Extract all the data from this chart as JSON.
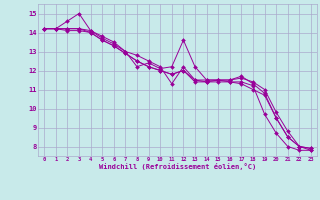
{
  "background_color": "#c8eaea",
  "grid_color": "#aaaacc",
  "line_color": "#990099",
  "marker_color": "#990099",
  "xlabel": "Windchill (Refroidissement éolien,°C)",
  "xlabel_color": "#990099",
  "tick_color": "#990099",
  "xlim": [
    -0.5,
    23.5
  ],
  "ylim": [
    7.5,
    15.5
  ],
  "xticks": [
    0,
    1,
    2,
    3,
    4,
    5,
    6,
    7,
    8,
    9,
    10,
    11,
    12,
    13,
    14,
    15,
    16,
    17,
    18,
    19,
    20,
    21,
    22,
    23
  ],
  "yticks": [
    8,
    9,
    10,
    11,
    12,
    13,
    14,
    15
  ],
  "series": [
    {
      "x": [
        0,
        1,
        2,
        3,
        4,
        5,
        6,
        7,
        8,
        9,
        10,
        11,
        12,
        13,
        14,
        15,
        16,
        17,
        18,
        19,
        20,
        21,
        22,
        23
      ],
      "y": [
        14.2,
        14.2,
        14.6,
        15.0,
        14.1,
        13.8,
        13.5,
        13.0,
        12.2,
        12.4,
        12.1,
        12.2,
        13.6,
        12.2,
        11.5,
        11.5,
        11.5,
        11.7,
        11.3,
        10.8,
        9.5,
        8.5,
        8.0,
        7.9
      ]
    },
    {
      "x": [
        0,
        1,
        2,
        3,
        4,
        5,
        6,
        7,
        8,
        9,
        10,
        11,
        12,
        13,
        14,
        15,
        16,
        17,
        18,
        19,
        20,
        21,
        22,
        23
      ],
      "y": [
        14.2,
        14.2,
        14.2,
        14.2,
        14.1,
        13.7,
        13.4,
        13.0,
        12.8,
        12.5,
        12.2,
        11.3,
        12.2,
        11.5,
        11.5,
        11.5,
        11.4,
        11.3,
        11.0,
        10.7,
        9.5,
        8.5,
        8.0,
        7.9
      ]
    },
    {
      "x": [
        0,
        1,
        2,
        3,
        4,
        5,
        6,
        7,
        8,
        9,
        10,
        11,
        12,
        13,
        14,
        15,
        16,
        17,
        18,
        19,
        20,
        21,
        22,
        23
      ],
      "y": [
        14.2,
        14.2,
        14.1,
        14.1,
        14.0,
        13.6,
        13.3,
        12.9,
        12.5,
        12.2,
        12.0,
        11.8,
        12.0,
        11.4,
        11.4,
        11.4,
        11.4,
        11.4,
        11.2,
        9.7,
        8.7,
        8.0,
        7.8,
        7.8
      ]
    },
    {
      "x": [
        0,
        1,
        2,
        3,
        4,
        5,
        6,
        7,
        8,
        9,
        10,
        11,
        12,
        13,
        14,
        15,
        16,
        17,
        18,
        19,
        20,
        21,
        22,
        23
      ],
      "y": [
        14.2,
        14.2,
        14.2,
        14.2,
        14.0,
        13.6,
        13.3,
        12.9,
        12.5,
        12.2,
        12.0,
        11.8,
        12.0,
        11.5,
        11.4,
        11.5,
        11.5,
        11.6,
        11.4,
        11.0,
        9.8,
        8.8,
        8.0,
        7.8
      ]
    }
  ]
}
